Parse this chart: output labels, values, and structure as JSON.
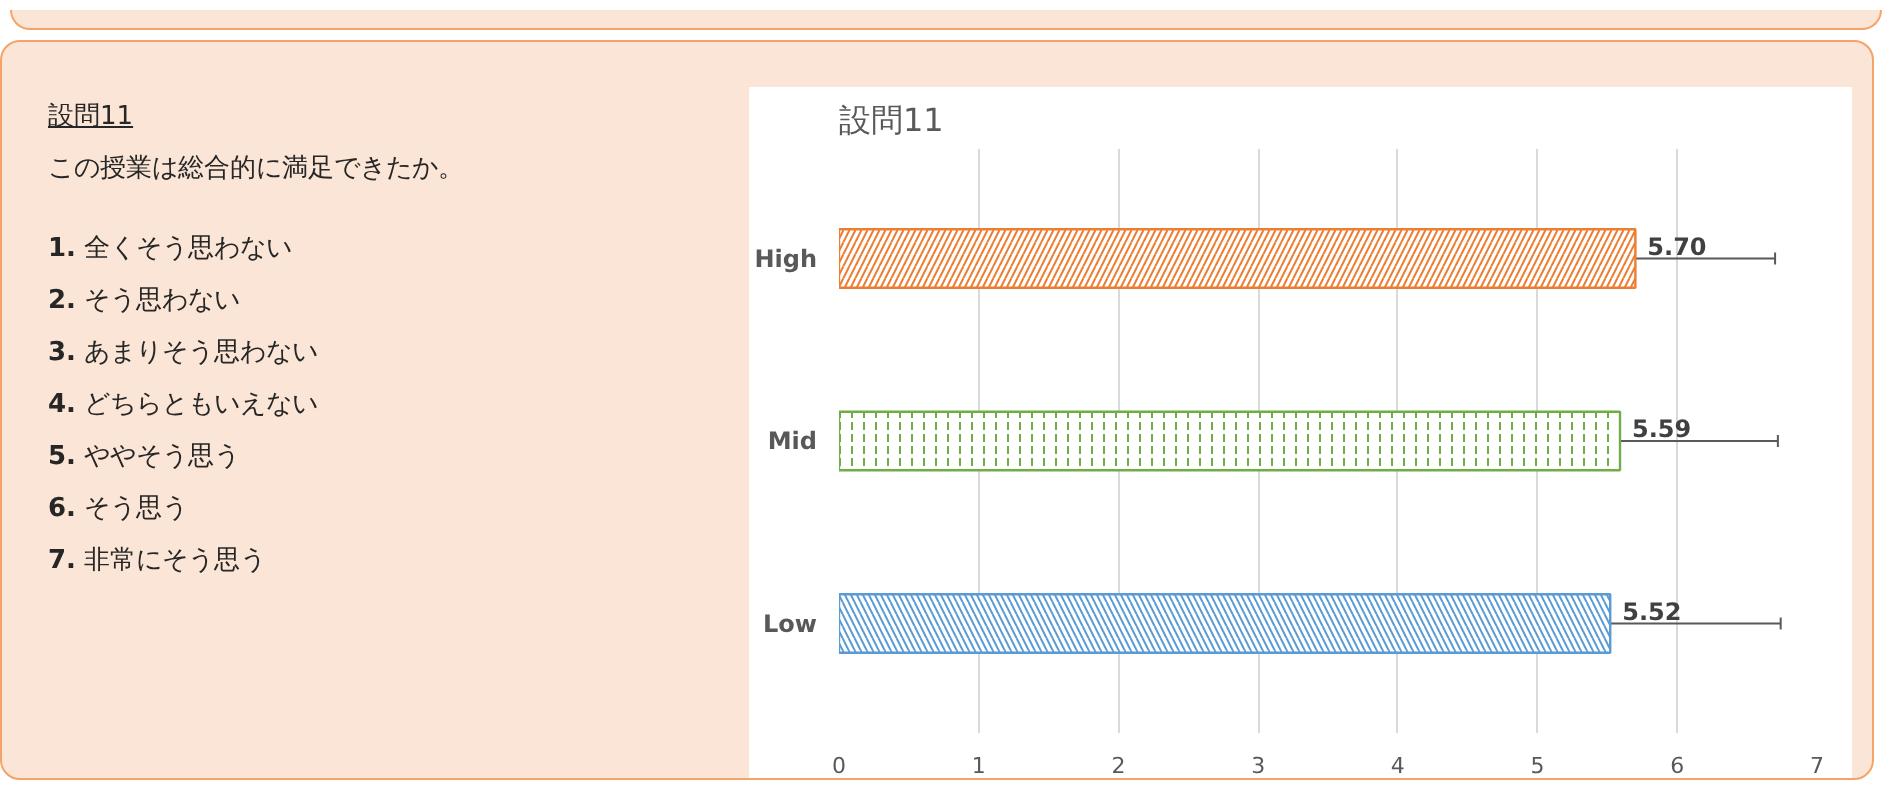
{
  "chart_data": {
    "type": "bar",
    "orientation": "horizontal",
    "title": "設問11",
    "categories": [
      "High",
      "Mid",
      "Low"
    ],
    "values": [
      5.7,
      5.59,
      5.52
    ],
    "colors": [
      "#ed7d31",
      "#70ad47",
      "#5b9bd5"
    ],
    "errors": [
      1.0,
      1.13,
      1.22
    ],
    "value_labels": [
      "5.70",
      "5.59",
      "5.52"
    ],
    "xlim": [
      0,
      7
    ],
    "xticks": [
      0,
      1,
      2,
      3,
      4,
      5,
      6,
      7
    ],
    "grid": "x",
    "annotations": [
      "設問11",
      "この授業は総合的に満足できたか。",
      "1. 全くそう思わない",
      "2. そう思わない",
      "3. あまりそう思わない",
      "4. どちらともいえない",
      "5. ややそう思う",
      "6. そう思う",
      "7. 非常にそう思う"
    ]
  }
}
